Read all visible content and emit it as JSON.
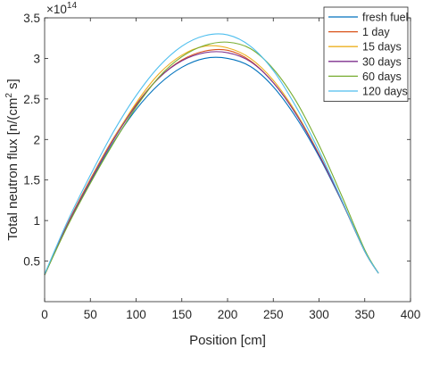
{
  "chart_data": {
    "type": "line",
    "xlabel": "Position [cm]",
    "ylabel": "Total neutron flux [n/(cm",
    "ylabel_sup": "2",
    "ylabel_tail": " s]",
    "y_exponent_base": "×10",
    "y_exponent_power": "14",
    "xlim": [
      0,
      400
    ],
    "ylim": [
      0,
      3.5
    ],
    "xticks": [
      0,
      50,
      100,
      150,
      200,
      250,
      300,
      350,
      400
    ],
    "yticks": [
      0.5,
      1,
      1.5,
      2,
      2.5,
      3,
      3.5
    ],
    "ytick_labels": [
      "0.5",
      "1",
      "1.5",
      "2",
      "2.5",
      "3",
      "3.5"
    ],
    "legend_position": "top-right",
    "grid": false,
    "x": [
      0,
      25,
      50,
      75,
      100,
      125,
      150,
      175,
      200,
      225,
      250,
      275,
      300,
      325,
      350,
      365
    ],
    "series": [
      {
        "name": "fresh fuel",
        "color": "#0072BD",
        "values": [
          0.33,
          0.94,
          1.47,
          1.96,
          2.37,
          2.68,
          2.89,
          3.0,
          3.0,
          2.9,
          2.65,
          2.27,
          1.79,
          1.23,
          0.62,
          0.35
        ]
      },
      {
        "name": "1 day",
        "color": "#D95319",
        "values": [
          0.33,
          0.96,
          1.51,
          2.01,
          2.43,
          2.76,
          2.98,
          3.09,
          3.1,
          2.97,
          2.7,
          2.31,
          1.81,
          1.24,
          0.62,
          0.35
        ]
      },
      {
        "name": "15 days",
        "color": "#EDB120",
        "values": [
          0.33,
          0.95,
          1.5,
          2.0,
          2.45,
          2.81,
          3.04,
          3.15,
          3.13,
          3.0,
          2.73,
          2.33,
          1.82,
          1.24,
          0.62,
          0.35
        ]
      },
      {
        "name": "30 days",
        "color": "#7E2F8E",
        "values": [
          0.33,
          0.95,
          1.49,
          1.99,
          2.42,
          2.76,
          2.97,
          3.07,
          3.07,
          2.96,
          2.7,
          2.31,
          1.81,
          1.24,
          0.62,
          0.35
        ]
      },
      {
        "name": "60 days",
        "color": "#77AC30",
        "values": [
          0.33,
          0.93,
          1.46,
          1.95,
          2.4,
          2.77,
          3.02,
          3.16,
          3.2,
          3.12,
          2.87,
          2.47,
          1.93,
          1.3,
          0.64,
          0.35
        ]
      },
      {
        "name": "120 days",
        "color": "#4DBEEE",
        "values": [
          0.34,
          0.99,
          1.56,
          2.09,
          2.54,
          2.9,
          3.15,
          3.28,
          3.29,
          3.15,
          2.85,
          2.4,
          1.86,
          1.25,
          0.62,
          0.35
        ]
      }
    ]
  }
}
